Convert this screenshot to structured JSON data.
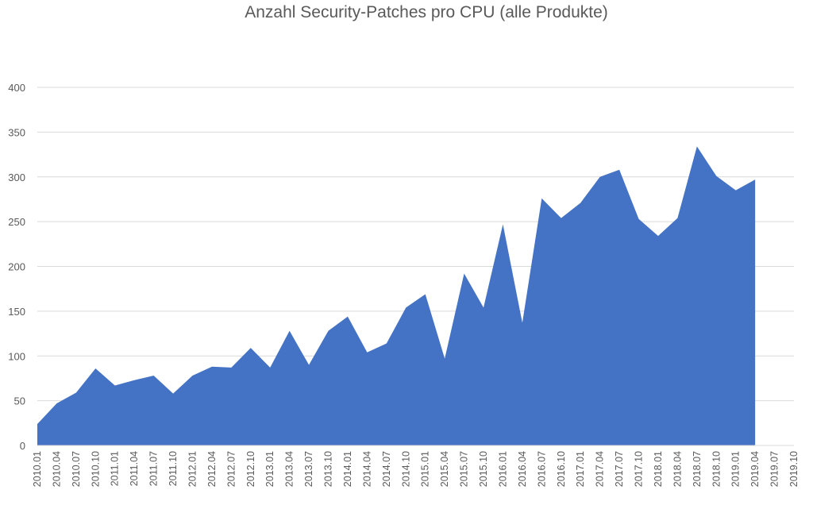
{
  "chart_data": {
    "type": "area",
    "title": "Anzahl Security-Patches pro CPU (alle Produkte)",
    "xlabel": "",
    "ylabel": "",
    "ylim": [
      0,
      400
    ],
    "yticks": [
      0,
      50,
      100,
      150,
      200,
      250,
      300,
      350,
      400
    ],
    "grid": true,
    "color": "#4472C4",
    "categories": [
      "2010.01",
      "2010.04",
      "2010.07",
      "2010.10",
      "2011.01",
      "2011.04",
      "2011.07",
      "2011.10",
      "2012.01",
      "2012.04",
      "2012.07",
      "2012.10",
      "2013.01",
      "2013.04",
      "2013.07",
      "2013.10",
      "2014.01",
      "2014.04",
      "2014.07",
      "2014.10",
      "2015.01",
      "2015.04",
      "2015.07",
      "2015.10",
      "2016.01",
      "2016.04",
      "2016.07",
      "2016.10",
      "2017.01",
      "2017.04",
      "2017.07",
      "2017.10",
      "2018.01",
      "2018.04",
      "2018.07",
      "2018.10",
      "2019.01",
      "2019.04",
      "2019.07",
      "2019.10"
    ],
    "values": [
      24,
      47,
      59,
      86,
      67,
      73,
      78,
      58,
      78,
      88,
      87,
      109,
      87,
      128,
      90,
      128,
      144,
      104,
      114,
      154,
      169,
      97,
      192,
      154,
      247,
      137,
      276,
      254,
      271,
      300,
      308,
      253,
      234,
      254,
      334,
      301,
      285,
      297,
      null,
      null
    ]
  }
}
